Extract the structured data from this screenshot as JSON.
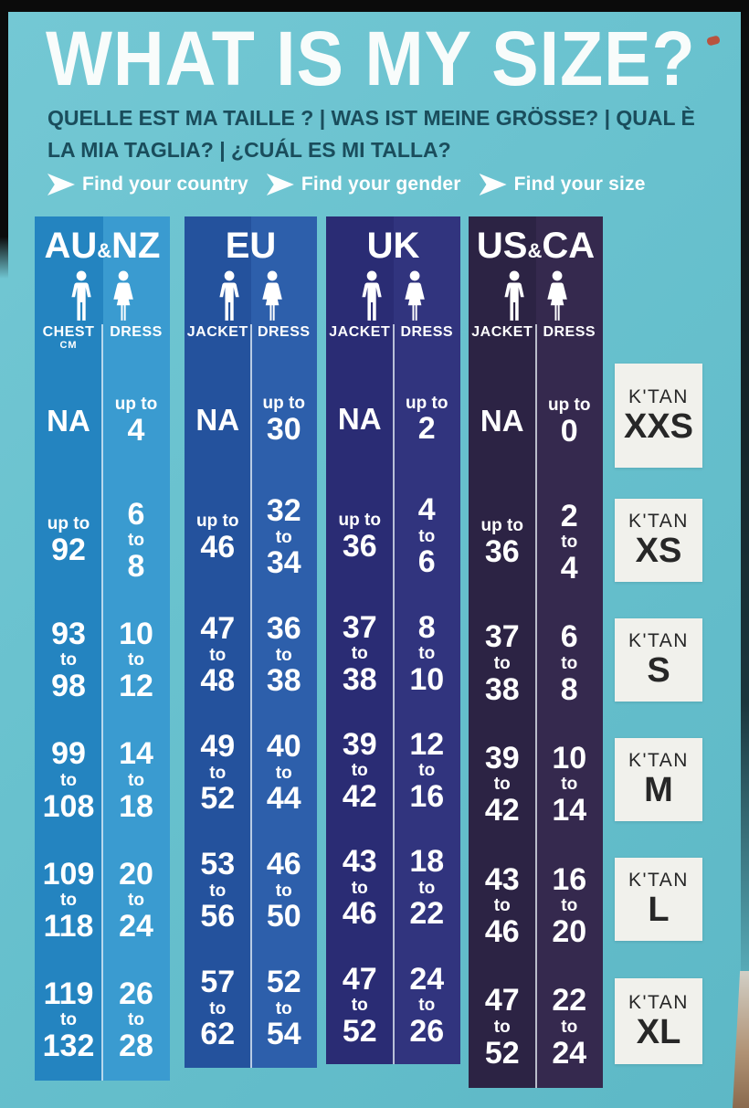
{
  "header": {
    "title": "WHAT IS MY SIZE?",
    "subtitle": "QUELLE EST MA TAILLE ? | WAS IST MEINE GRÖSSE? | QUAL È LA MIA TAGLIA? | ¿CUÁL ES MI TALLA?",
    "steps": [
      "Find your country",
      "Find your gender",
      "Find your size"
    ]
  },
  "colors": {
    "background": "#68c1ce",
    "title_text": "#f8fcfb",
    "subtitle_text": "#1a4d5c",
    "step_text": "#ffffff",
    "label_box_bg": "#f1f1ec",
    "label_box_text": "#272727",
    "photo_edge": "#0b0b0b",
    "column_au_nz_left": "#2484c0",
    "column_au_nz_right": "#3a9bd0",
    "column_eu_left": "#24529d",
    "column_eu_right": "#2d5fab",
    "column_uk_left": "#2a2c74",
    "column_uk_right": "#31347e",
    "column_us_ca_left": "#2c2344",
    "column_us_ca_right": "#35294e"
  },
  "table": {
    "columns": [
      {
        "id": "au-nz",
        "region_parts": [
          "AU",
          "&",
          "NZ"
        ],
        "genders": [
          "male",
          "female"
        ],
        "sub_headers": [
          {
            "label": "CHEST",
            "sub": "CM"
          },
          {
            "label": "DRESS",
            "sub": ""
          }
        ],
        "color_left": "#2484c0",
        "color_right": "#3a9bd0",
        "rows": [
          {
            "left": {
              "kind": "na",
              "text": "NA"
            },
            "right": {
              "kind": "upto",
              "label": "up to",
              "value": "4"
            }
          },
          {
            "left": {
              "kind": "upto",
              "label": "up to",
              "value": "92"
            },
            "right": {
              "kind": "range",
              "from": "6",
              "mid": "to",
              "to": "8"
            }
          },
          {
            "left": {
              "kind": "range",
              "from": "93",
              "mid": "to",
              "to": "98"
            },
            "right": {
              "kind": "range",
              "from": "10",
              "mid": "to",
              "to": "12"
            }
          },
          {
            "left": {
              "kind": "range",
              "from": "99",
              "mid": "to",
              "to": "108"
            },
            "right": {
              "kind": "range",
              "from": "14",
              "mid": "to",
              "to": "18"
            }
          },
          {
            "left": {
              "kind": "range",
              "from": "109",
              "mid": "to",
              "to": "118"
            },
            "right": {
              "kind": "range",
              "from": "20",
              "mid": "to",
              "to": "24"
            }
          },
          {
            "left": {
              "kind": "range",
              "from": "119",
              "mid": "to",
              "to": "132"
            },
            "right": {
              "kind": "range",
              "from": "26",
              "mid": "to",
              "to": "28"
            }
          }
        ]
      },
      {
        "id": "eu",
        "region_parts": [
          "EU"
        ],
        "genders": [
          "male",
          "female"
        ],
        "sub_headers": [
          {
            "label": "JACKET",
            "sub": ""
          },
          {
            "label": "DRESS",
            "sub": ""
          }
        ],
        "color_left": "#24529d",
        "color_right": "#2d5fab",
        "rows": [
          {
            "left": {
              "kind": "na",
              "text": "NA"
            },
            "right": {
              "kind": "upto",
              "label": "up to",
              "value": "30"
            }
          },
          {
            "left": {
              "kind": "upto",
              "label": "up to",
              "value": "46"
            },
            "right": {
              "kind": "range",
              "from": "32",
              "mid": "to",
              "to": "34"
            }
          },
          {
            "left": {
              "kind": "range",
              "from": "47",
              "mid": "to",
              "to": "48"
            },
            "right": {
              "kind": "range",
              "from": "36",
              "mid": "to",
              "to": "38"
            }
          },
          {
            "left": {
              "kind": "range",
              "from": "49",
              "mid": "to",
              "to": "52"
            },
            "right": {
              "kind": "range",
              "from": "40",
              "mid": "to",
              "to": "44"
            }
          },
          {
            "left": {
              "kind": "range",
              "from": "53",
              "mid": "to",
              "to": "56"
            },
            "right": {
              "kind": "range",
              "from": "46",
              "mid": "to",
              "to": "50"
            }
          },
          {
            "left": {
              "kind": "range",
              "from": "57",
              "mid": "to",
              "to": "62"
            },
            "right": {
              "kind": "range",
              "from": "52",
              "mid": "to",
              "to": "54"
            }
          }
        ]
      },
      {
        "id": "uk",
        "region_parts": [
          "UK"
        ],
        "genders": [
          "male",
          "female"
        ],
        "sub_headers": [
          {
            "label": "JACKET",
            "sub": ""
          },
          {
            "label": "DRESS",
            "sub": ""
          }
        ],
        "color_left": "#2a2c74",
        "color_right": "#31347e",
        "rows": [
          {
            "left": {
              "kind": "na",
              "text": "NA"
            },
            "right": {
              "kind": "upto",
              "label": "up to",
              "value": "2"
            }
          },
          {
            "left": {
              "kind": "upto",
              "label": "up to",
              "value": "36"
            },
            "right": {
              "kind": "range",
              "from": "4",
              "mid": "to",
              "to": "6"
            }
          },
          {
            "left": {
              "kind": "range",
              "from": "37",
              "mid": "to",
              "to": "38"
            },
            "right": {
              "kind": "range",
              "from": "8",
              "mid": "to",
              "to": "10"
            }
          },
          {
            "left": {
              "kind": "range",
              "from": "39",
              "mid": "to",
              "to": "42"
            },
            "right": {
              "kind": "range",
              "from": "12",
              "mid": "to",
              "to": "16"
            }
          },
          {
            "left": {
              "kind": "range",
              "from": "43",
              "mid": "to",
              "to": "46"
            },
            "right": {
              "kind": "range",
              "from": "18",
              "mid": "to",
              "to": "22"
            }
          },
          {
            "left": {
              "kind": "range",
              "from": "47",
              "mid": "to",
              "to": "52"
            },
            "right": {
              "kind": "range",
              "from": "24",
              "mid": "to",
              "to": "26"
            }
          }
        ]
      },
      {
        "id": "us-ca",
        "region_parts": [
          "US",
          "&",
          "CA"
        ],
        "genders": [
          "male",
          "female"
        ],
        "sub_headers": [
          {
            "label": "JACKET",
            "sub": ""
          },
          {
            "label": "DRESS",
            "sub": ""
          }
        ],
        "color_left": "#2c2344",
        "color_right": "#35294e",
        "rows": [
          {
            "left": {
              "kind": "na",
              "text": "NA"
            },
            "right": {
              "kind": "upto",
              "label": "up to",
              "value": "0"
            }
          },
          {
            "left": {
              "kind": "upto",
              "label": "up to",
              "value": "36"
            },
            "right": {
              "kind": "range",
              "from": "2",
              "mid": "to",
              "to": "4"
            }
          },
          {
            "left": {
              "kind": "range",
              "from": "37",
              "mid": "to",
              "to": "38"
            },
            "right": {
              "kind": "range",
              "from": "6",
              "mid": "to",
              "to": "8"
            }
          },
          {
            "left": {
              "kind": "range",
              "from": "39",
              "mid": "to",
              "to": "42"
            },
            "right": {
              "kind": "range",
              "from": "10",
              "mid": "to",
              "to": "14"
            }
          },
          {
            "left": {
              "kind": "range",
              "from": "43",
              "mid": "to",
              "to": "46"
            },
            "right": {
              "kind": "range",
              "from": "16",
              "mid": "to",
              "to": "20"
            }
          },
          {
            "left": {
              "kind": "range",
              "from": "47",
              "mid": "to",
              "to": "52"
            },
            "right": {
              "kind": "range",
              "from": "22",
              "mid": "to",
              "to": "24"
            }
          }
        ]
      }
    ]
  },
  "size_labels": [
    {
      "brand": "K'TAN",
      "size": "XXS"
    },
    {
      "brand": "K'TAN",
      "size": "XS"
    },
    {
      "brand": "K'TAN",
      "size": "S"
    },
    {
      "brand": "K'TAN",
      "size": "M"
    },
    {
      "brand": "K'TAN",
      "size": "L"
    },
    {
      "brand": "K'TAN",
      "size": "XL"
    }
  ],
  "chart_data": {
    "type": "table",
    "title": "WHAT IS MY SIZE?",
    "row_labels": [
      "XXS",
      "XS",
      "S",
      "M",
      "L",
      "XL"
    ],
    "columns": [
      "AU&NZ CHEST CM",
      "AU&NZ DRESS",
      "EU JACKET",
      "EU DRESS",
      "UK JACKET",
      "UK DRESS",
      "US&CA JACKET",
      "US&CA DRESS"
    ],
    "rows": [
      [
        "NA",
        "up to 4",
        "NA",
        "up to 30",
        "NA",
        "up to 2",
        "NA",
        "up to 0"
      ],
      [
        "up to 92",
        "6 to 8",
        "up to 46",
        "32 to 34",
        "up to 36",
        "4 to 6",
        "up to 36",
        "2 to 4"
      ],
      [
        "93 to 98",
        "10 to 12",
        "47 to 48",
        "36 to 38",
        "37 to 38",
        "8 to 10",
        "37 to 38",
        "6 to 8"
      ],
      [
        "99 to 108",
        "14 to 18",
        "49 to 52",
        "40 to 44",
        "39 to 42",
        "12 to 16",
        "39 to 42",
        "10 to 14"
      ],
      [
        "109 to 118",
        "20 to 24",
        "53 to 56",
        "46 to 50",
        "43 to 46",
        "18 to 22",
        "43 to 46",
        "16 to 20"
      ],
      [
        "119 to 132",
        "26 to 28",
        "57 to 62",
        "52 to 54",
        "47 to 52",
        "24 to 26",
        "47 to 52",
        "22 to 24"
      ]
    ]
  }
}
